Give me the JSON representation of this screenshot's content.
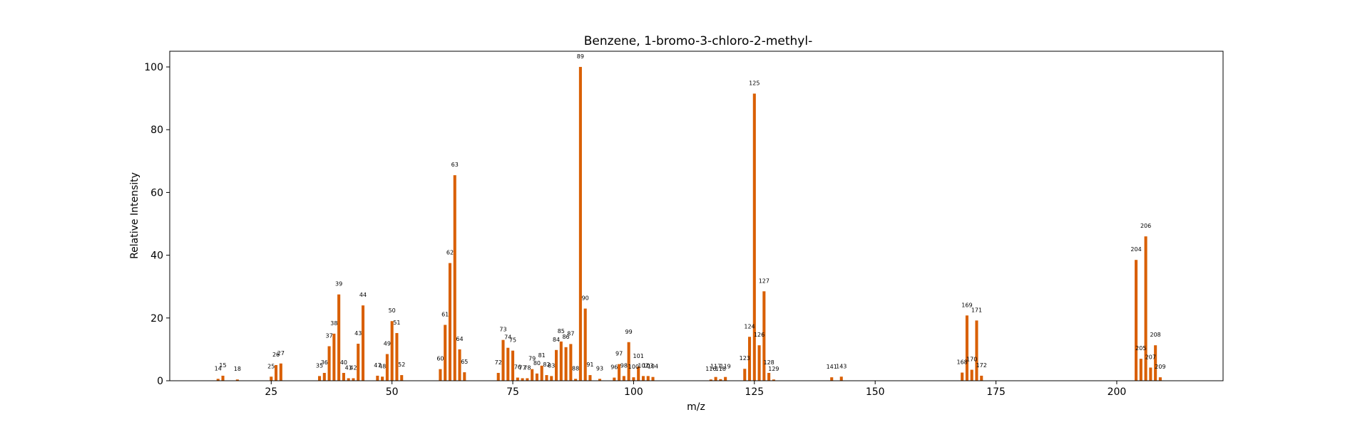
{
  "chart_data": {
    "type": "bar",
    "title": "Benzene, 1-bromo-3-chloro-2-methyl-",
    "xlabel": "m/z",
    "ylabel": "Relative Intensity",
    "xlim": [
      4,
      222
    ],
    "ylim": [
      0,
      105
    ],
    "xticks": [
      25,
      50,
      75,
      100,
      125,
      150,
      175,
      200
    ],
    "yticks": [
      0,
      20,
      40,
      60,
      80,
      100
    ],
    "grid": false,
    "color": "#d95f02",
    "x": [
      14,
      15,
      18,
      25,
      26,
      27,
      35,
      36,
      37,
      38,
      39,
      40,
      41,
      42,
      43,
      44,
      47,
      48,
      49,
      50,
      51,
      52,
      60,
      61,
      62,
      63,
      64,
      65,
      72,
      73,
      74,
      75,
      76,
      77,
      78,
      79,
      80,
      81,
      82,
      83,
      84,
      85,
      86,
      87,
      88,
      89,
      90,
      91,
      93,
      96,
      97,
      98,
      99,
      100,
      101,
      102,
      103,
      104,
      116,
      117,
      118,
      119,
      123,
      124,
      125,
      126,
      127,
      128,
      129,
      141,
      143,
      168,
      169,
      170,
      171,
      172,
      204,
      205,
      206,
      207,
      208,
      209
    ],
    "y": [
      0.6,
      1.6,
      0.4,
      1.3,
      5.0,
      5.5,
      1.5,
      2.5,
      11.0,
      15.0,
      27.5,
      2.5,
      0.8,
      0.8,
      11.8,
      24.0,
      1.6,
      1.3,
      8.5,
      19.0,
      15.2,
      1.8,
      3.7,
      17.8,
      37.5,
      65.5,
      10.0,
      2.7,
      2.5,
      13.0,
      10.5,
      9.6,
      1.0,
      0.8,
      0.8,
      3.7,
      2.3,
      4.8,
      1.8,
      1.5,
      9.8,
      12.5,
      10.7,
      11.7,
      0.6,
      100.0,
      23.0,
      1.8,
      0.6,
      1.0,
      5.3,
      1.5,
      12.3,
      1.1,
      4.5,
      1.5,
      1.5,
      1.2,
      0.4,
      1.2,
      0.5,
      1.2,
      3.8,
      14.0,
      91.5,
      11.3,
      28.5,
      2.5,
      0.4,
      1.1,
      1.3,
      2.6,
      20.8,
      3.5,
      19.2,
      1.6,
      38.5,
      7.0,
      46.0,
      4.2,
      11.3,
      1.1
    ]
  }
}
